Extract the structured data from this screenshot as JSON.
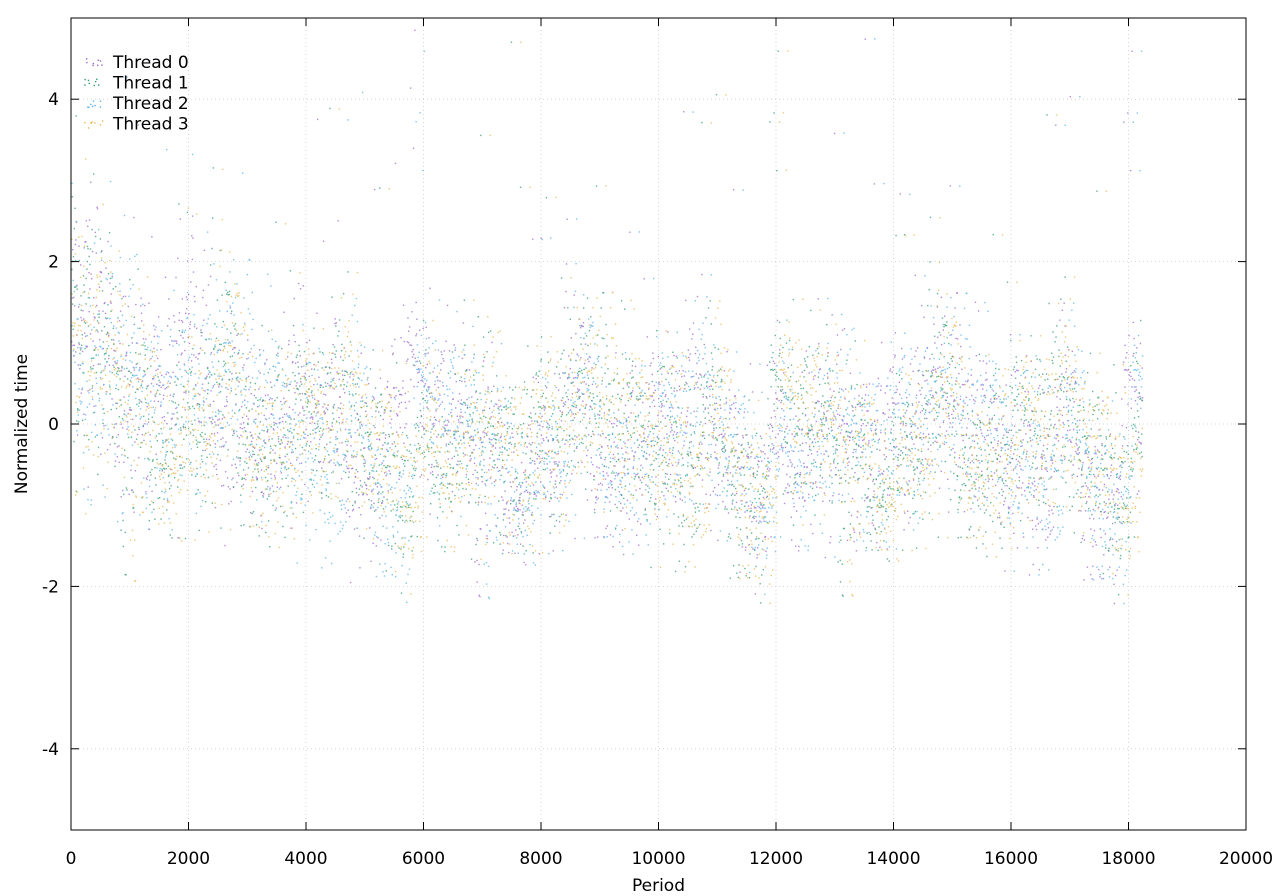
{
  "chart_data": {
    "type": "scatter",
    "title": "",
    "xlabel": "Period",
    "ylabel": "Normalized time",
    "xlim": [
      0,
      20000
    ],
    "ylim": [
      -5,
      5
    ],
    "xticks": [
      0,
      2000,
      4000,
      6000,
      8000,
      10000,
      12000,
      14000,
      16000,
      18000,
      20000
    ],
    "xtick_labels": [
      "0",
      "2000",
      "4000",
      "6000",
      "8000",
      "10000",
      "12000",
      "14000",
      "16000",
      "18000",
      "20000"
    ],
    "yticks": [
      -4,
      -2,
      0,
      2,
      4
    ],
    "ytick_labels": [
      "-4",
      "-2",
      "0",
      "2",
      "4"
    ],
    "grid": true,
    "legend_position": "top-left",
    "x_max_data": 18230,
    "series": [
      {
        "name": "Thread 0",
        "color": "#9966cc",
        "marker": "dot"
      },
      {
        "name": "Thread 1",
        "color": "#2e9e6e",
        "marker": "dot"
      },
      {
        "name": "Thread 2",
        "color": "#56b4e9",
        "marker": "dot"
      },
      {
        "name": "Thread 3",
        "color": "#e6b84c",
        "marker": "dot"
      }
    ],
    "trend": {
      "description_points_x": [
        0,
        500,
        1000,
        2000,
        3000,
        4000,
        6000,
        8000,
        10000,
        12000,
        14000,
        16000,
        18000,
        18230
      ],
      "mean_y": [
        1.4,
        0.9,
        0.5,
        0.2,
        0.1,
        -0.1,
        -0.2,
        -0.2,
        -0.15,
        -0.2,
        -0.15,
        -0.2,
        -0.2,
        -0.2
      ],
      "spread": [
        1.2,
        1.0,
        0.9,
        0.8,
        0.8,
        0.7,
        0.7,
        0.7,
        0.7,
        0.7,
        0.7,
        0.7,
        0.7,
        0.7
      ]
    }
  }
}
